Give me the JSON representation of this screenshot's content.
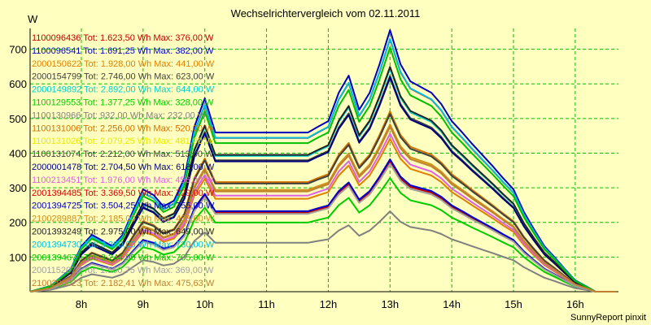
{
  "chart_data": {
    "type": "line",
    "title": "Wechselrichtervergleich vom 02.11.2011",
    "ylabel": "W",
    "footer": "SunnyReport pinxit",
    "ylim": [
      0,
      760
    ],
    "xlim": [
      7.17,
      16.7
    ],
    "yticks": [
      100,
      200,
      300,
      400,
      500,
      600,
      700
    ],
    "xticks": [
      {
        "x": 8,
        "label": "8h"
      },
      {
        "x": 9,
        "label": "9h"
      },
      {
        "x": 10,
        "label": "10h"
      },
      {
        "x": 11,
        "label": "11h"
      },
      {
        "x": 12,
        "label": "12h"
      },
      {
        "x": 13,
        "label": "13h"
      },
      {
        "x": 14,
        "label": "14h"
      },
      {
        "x": 15,
        "label": "15h"
      },
      {
        "x": 16,
        "label": "16h"
      }
    ],
    "grid": true,
    "x": [
      7.17,
      7.5,
      7.83,
      8,
      8.17,
      8.5,
      8.67,
      8.83,
      9,
      9.17,
      9.33,
      9.5,
      9.67,
      9.83,
      10,
      10.17,
      10.33,
      10.5,
      10.67,
      10.83,
      11,
      11.17,
      11.33,
      11.5,
      11.67,
      11.83,
      12,
      12.17,
      12.33,
      12.5,
      12.67,
      12.83,
      13,
      13.17,
      13.33,
      13.5,
      13.67,
      13.83,
      14,
      14.17,
      14.33,
      14.5,
      14.67,
      14.83,
      15,
      15.17,
      15.33,
      15.5,
      15.67,
      15.83,
      16,
      16.17,
      16.33,
      16.5,
      16.67
    ],
    "base": [
      0,
      5,
      20,
      40,
      50,
      40,
      50,
      70,
      90,
      85,
      75,
      80,
      100,
      145,
      170,
      140,
      140,
      140,
      140,
      140,
      140,
      140,
      140,
      140,
      140,
      145,
      150,
      175,
      190,
      160,
      175,
      200,
      230,
      200,
      185,
      180,
      175,
      165,
      150,
      140,
      130,
      120,
      110,
      100,
      90,
      70,
      55,
      40,
      30,
      20,
      10,
      5,
      0,
      0,
      0
    ],
    "series": [
      {
        "name": "1100096436",
        "label": "1100096436 Tot: 1.623,50 Wh Max: 376,00 W",
        "color": "#c00000",
        "max": 376
      },
      {
        "name": "1100096541",
        "label": "1100096541 Tot: 1.691,25 Wh Max: 382,00 W",
        "color": "#0000d0",
        "max": 382
      },
      {
        "name": "2000150622",
        "label": "2000150622 Tot: 1.928,00 Wh Max: 441,00 W",
        "color": "#e08000",
        "max": 441
      },
      {
        "name": "2000154799",
        "label": "2000154799 Tot: 2.746,00 Wh Max: 623,00 W",
        "color": "#404040",
        "max": 623
      },
      {
        "name": "2000149892",
        "label": "2000149892 Tot: 2.892,00 Wh Max: 644,00 W",
        "color": "#00d0d0",
        "max": 644
      },
      {
        "name": "1100129553",
        "label": "1100129553 Tot: 1.377,25 Wh Max: 328,00 W",
        "color": "#00cc00",
        "max": 328
      },
      {
        "name": "1100130966",
        "label": "1100130966 Tot: 932,00 Wh Max: 232,00 W",
        "color": "#808080",
        "max": 232
      },
      {
        "name": "1100131006",
        "label": "1100131006 Tot: 2.256,00 Wh Max: 520,00 W",
        "color": "#d07000",
        "max": 520
      },
      {
        "name": "1100131026",
        "label": "1100131026 Tot: 2.079,25 Wh Max: 481,00 W",
        "color": "#e8e800",
        "max": 481
      },
      {
        "name": "1100131074",
        "label": "1100131074 Tot: 2.212,00 Wh Max: 513,00 W",
        "color": "#404040",
        "max": 513
      },
      {
        "name": "2000001478",
        "label": "2000001478 Tot: 2.704,50 Wh Max: 618,00 W",
        "color": "#000080",
        "max": 618
      },
      {
        "name": "1100213451",
        "label": "1100213451 Tot: 1.976,00 Wh Max: 456,00 W",
        "color": "#e060e0",
        "max": 456
      },
      {
        "name": "2001394485",
        "label": "2001394485 Tot: 3.369,50 Wh Max: 729,00 W",
        "color": "#d00000",
        "max": 729
      },
      {
        "name": "2001394725",
        "label": "2001394725 Tot: 3.504,25 Wh Max: 755,00 W",
        "color": "#0000c0",
        "max": 755
      },
      {
        "name": "2100289887",
        "label": "2100289887 Tot: 2.185,00 Wh Max: 483,00 W",
        "color": "#d09020",
        "max": 483
      },
      {
        "name": "2001393249",
        "label": "2001393249 Tot: 2.975,00 Wh Max: 649,00 W",
        "color": "#202020",
        "max": 649
      },
      {
        "name": "2001394730",
        "label": "2001394730 Tot: 3.380,00 Wh Max: 730,00 W",
        "color": "#00c0e0",
        "max": 730
      },
      {
        "name": "2001394671",
        "label": "2001394671 Tot: 3.244,00 Wh Max: 705,00 W",
        "color": "#00c000",
        "max": 705
      },
      {
        "name": "2001152078",
        "label": "2001152078 Tot: 1.560,75 Wh Max: 369,00 W",
        "color": "#a0a0a0",
        "max": 369
      },
      {
        "name": "2100290023",
        "label": "2100290023 Tot: 2.182,41 Wh Max: 475,63 W",
        "color": "#c08030",
        "max": 475.63
      }
    ]
  }
}
